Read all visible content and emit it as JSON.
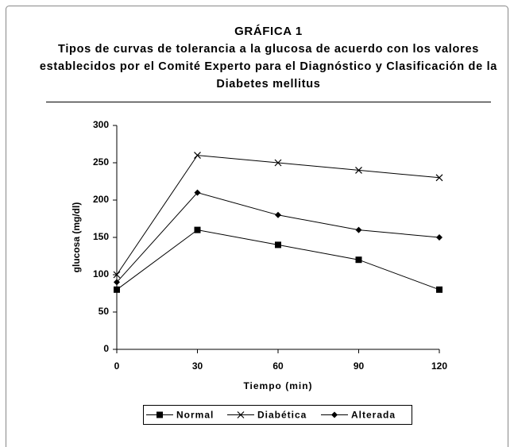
{
  "chart_data": {
    "type": "line",
    "title": "GRÁFICA 1",
    "subtitle": "Tipos de curvas de tolerancia a la glucosa de acuerdo con los valores establecidos por el Comité Experto para el Diagnóstico y Clasificación de la Diabetes mellitus",
    "x_label": "Tiempo (min)",
    "y_label": "glucosa (mg/dl)",
    "x": [
      0,
      30,
      60,
      90,
      120
    ],
    "xlim": [
      0,
      120
    ],
    "xticks": [
      0,
      30,
      60,
      90,
      120
    ],
    "ylim": [
      0,
      300
    ],
    "yticks": [
      0,
      50,
      100,
      150,
      200,
      250,
      300
    ],
    "grid": false,
    "legend": "bottom",
    "series": [
      {
        "name": "Normal",
        "color": "#000000",
        "marker": "square",
        "values": [
          80,
          160,
          140,
          120,
          80
        ]
      },
      {
        "name": "Diabética",
        "color": "#000000",
        "marker": "x",
        "values": [
          100,
          260,
          250,
          240,
          230
        ]
      },
      {
        "name": "Alterada",
        "color": "#000000",
        "marker": "diamond",
        "values": [
          90,
          210,
          180,
          160,
          150
        ]
      }
    ]
  }
}
